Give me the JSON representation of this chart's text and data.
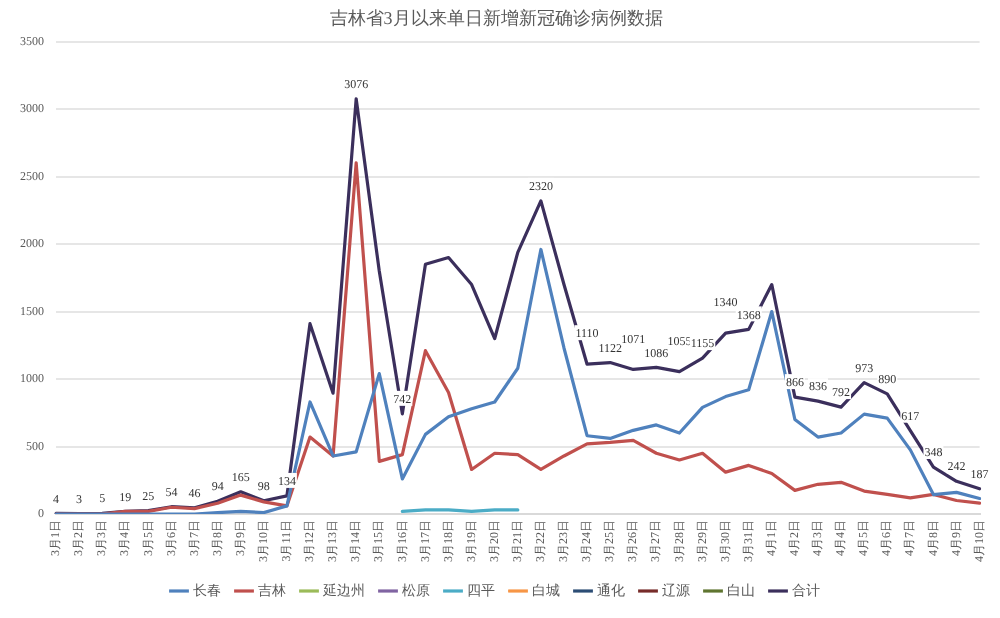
{
  "chart_data": {
    "type": "line",
    "title": "吉林省3月以来单日新增新冠确诊病例数据",
    "categories": [
      "3月1日",
      "3月2日",
      "3月3日",
      "3月4日",
      "3月5日",
      "3月6日",
      "3月7日",
      "3月8日",
      "3月9日",
      "3月10日",
      "3月11日",
      "3月12日",
      "3月13日",
      "3月14日",
      "3月15日",
      "3月16日",
      "3月17日",
      "3月18日",
      "3月19日",
      "3月20日",
      "3月21日",
      "3月22日",
      "3月23日",
      "3月24日",
      "3月25日",
      "3月26日",
      "3月27日",
      "3月28日",
      "3月29日",
      "3月30日",
      "3月31日",
      "4月1日",
      "4月2日",
      "4月3日",
      "4月4日",
      "4月5日",
      "4月6日",
      "4月7日",
      "4月8日",
      "4月9日",
      "4月10日"
    ],
    "series": [
      {
        "name": "长春",
        "color": "#4f81bd",
        "values": [
          0,
          0,
          0,
          0,
          0,
          0,
          0,
          10,
          20,
          10,
          60,
          830,
          430,
          460,
          1040,
          260,
          590,
          720,
          780,
          830,
          1080,
          1960,
          1230,
          580,
          560,
          620,
          660,
          600,
          790,
          870,
          920,
          1500,
          700,
          570,
          600,
          740,
          710,
          475,
          144,
          160,
          115
        ]
      },
      {
        "name": "吉林",
        "color": "#c0504d",
        "values": [
          0,
          0,
          0,
          20,
          20,
          50,
          40,
          80,
          140,
          90,
          60,
          570,
          430,
          2601,
          390,
          440,
          1210,
          900,
          330,
          450,
          440,
          330,
          430,
          520,
          530,
          545,
          450,
          400,
          450,
          310,
          360,
          300,
          175,
          220,
          235,
          170,
          145,
          120,
          145,
          100,
          80
        ]
      },
      {
        "name": "延边州",
        "color": "#9bbb59",
        "values": [
          null,
          null,
          null,
          null,
          null,
          null,
          null,
          null,
          null,
          null,
          null,
          null,
          null,
          null,
          null,
          null,
          null,
          null,
          null,
          null,
          null,
          null,
          null,
          null,
          null,
          null,
          null,
          null,
          null,
          null,
          null,
          null,
          null,
          null,
          null,
          null,
          null,
          null,
          null,
          null,
          null
        ]
      },
      {
        "name": "松原",
        "color": "#8064a2",
        "values": [
          null,
          null,
          null,
          null,
          null,
          null,
          null,
          null,
          null,
          null,
          null,
          null,
          null,
          null,
          null,
          null,
          null,
          null,
          null,
          null,
          null,
          null,
          null,
          null,
          null,
          null,
          null,
          null,
          null,
          null,
          null,
          null,
          null,
          null,
          null,
          null,
          null,
          null,
          null,
          null,
          null
        ]
      },
      {
        "name": "四平",
        "color": "#4bacc6",
        "values": [
          null,
          null,
          null,
          null,
          null,
          null,
          null,
          null,
          null,
          null,
          null,
          null,
          null,
          null,
          null,
          20,
          30,
          30,
          20,
          30,
          30,
          null,
          null,
          null,
          null,
          null,
          null,
          null,
          null,
          null,
          null,
          null,
          null,
          null,
          null,
          null,
          null,
          null,
          null,
          null,
          null
        ]
      },
      {
        "name": "白城",
        "color": "#f79646",
        "values": [
          null,
          null,
          null,
          null,
          null,
          null,
          null,
          null,
          null,
          null,
          null,
          null,
          null,
          null,
          null,
          null,
          null,
          null,
          null,
          null,
          null,
          null,
          null,
          null,
          null,
          null,
          null,
          null,
          null,
          null,
          null,
          null,
          null,
          null,
          null,
          null,
          null,
          null,
          null,
          null,
          null
        ]
      },
      {
        "name": "通化",
        "color": "#2c4d75",
        "values": [
          null,
          null,
          null,
          null,
          null,
          null,
          null,
          null,
          null,
          null,
          null,
          null,
          null,
          null,
          null,
          null,
          null,
          null,
          null,
          null,
          null,
          null,
          null,
          null,
          null,
          null,
          null,
          null,
          null,
          null,
          null,
          null,
          null,
          null,
          null,
          null,
          null,
          null,
          null,
          null,
          null
        ]
      },
      {
        "name": "辽源",
        "color": "#772c2a",
        "values": [
          null,
          null,
          null,
          null,
          null,
          null,
          null,
          null,
          null,
          null,
          null,
          null,
          null,
          null,
          null,
          null,
          null,
          null,
          null,
          null,
          null,
          null,
          null,
          null,
          null,
          null,
          null,
          null,
          null,
          null,
          null,
          null,
          null,
          null,
          null,
          null,
          null,
          null,
          null,
          null,
          null
        ]
      },
      {
        "name": "白山",
        "color": "#5f7530",
        "values": [
          null,
          null,
          null,
          null,
          null,
          null,
          null,
          null,
          null,
          null,
          null,
          null,
          null,
          null,
          null,
          null,
          null,
          null,
          null,
          null,
          null,
          null,
          null,
          null,
          null,
          null,
          null,
          null,
          null,
          null,
          null,
          null,
          null,
          null,
          null,
          null,
          null,
          null,
          null,
          null,
          null
        ]
      },
      {
        "name": "合计",
        "color": "#3b2f5c",
        "values": [
          4,
          3,
          5,
          19,
          25,
          54,
          46,
          94,
          165,
          98,
          134,
          1410,
          895,
          3076,
          1800,
          742,
          1850,
          1900,
          1700,
          1300,
          1939,
          2320,
          1700,
          1110,
          1122,
          1071,
          1086,
          1055,
          1155,
          1340,
          1368,
          1700,
          866,
          836,
          792,
          973,
          890,
          617,
          348,
          242,
          187
        ],
        "value_labels": [
          "4",
          "3",
          "5",
          "19",
          "25",
          "54",
          "46",
          "94",
          "165",
          "98",
          "134",
          null,
          null,
          "3076",
          null,
          "742",
          null,
          null,
          null,
          null,
          null,
          "2320",
          null,
          "1110",
          "1122",
          "1071",
          "1086",
          "1055",
          "1155",
          "1340",
          "1368",
          null,
          "866",
          "836",
          "792",
          "973",
          "890",
          "617",
          "348",
          "242",
          "187"
        ]
      }
    ],
    "ylim": [
      0,
      3500
    ],
    "yticks": [
      0,
      500,
      1000,
      1500,
      2000,
      2500,
      3000,
      3500
    ],
    "grid": "y",
    "legend": "bottom",
    "marker": "none",
    "line_style": "solid"
  }
}
